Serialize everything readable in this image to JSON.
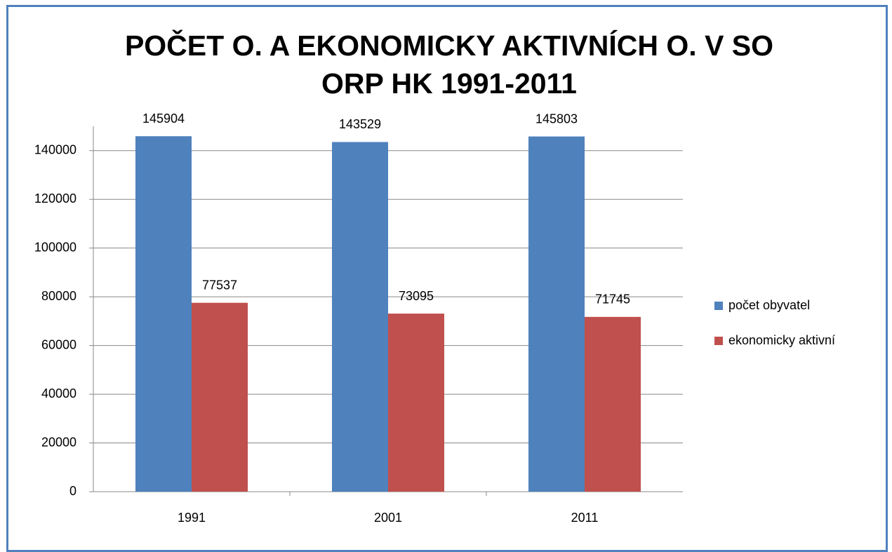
{
  "chart_data": {
    "type": "bar",
    "title": "POČET O. A EKONOMICKY AKTIVNÍCH O. V SO ORP HK 1991-2011",
    "categories": [
      "1991",
      "2001",
      "2011"
    ],
    "series": [
      {
        "name": "počet obyvatel",
        "color": "#4f81bd",
        "values": [
          145904,
          143529,
          145803
        ]
      },
      {
        "name": "ekonomicky aktivní",
        "color": "#c0504d",
        "values": [
          77537,
          73095,
          71745
        ]
      }
    ],
    "ylim": [
      0,
      150000
    ],
    "yticks": [
      0,
      20000,
      40000,
      60000,
      80000,
      100000,
      120000,
      140000
    ],
    "grid": true,
    "legend": "right"
  }
}
